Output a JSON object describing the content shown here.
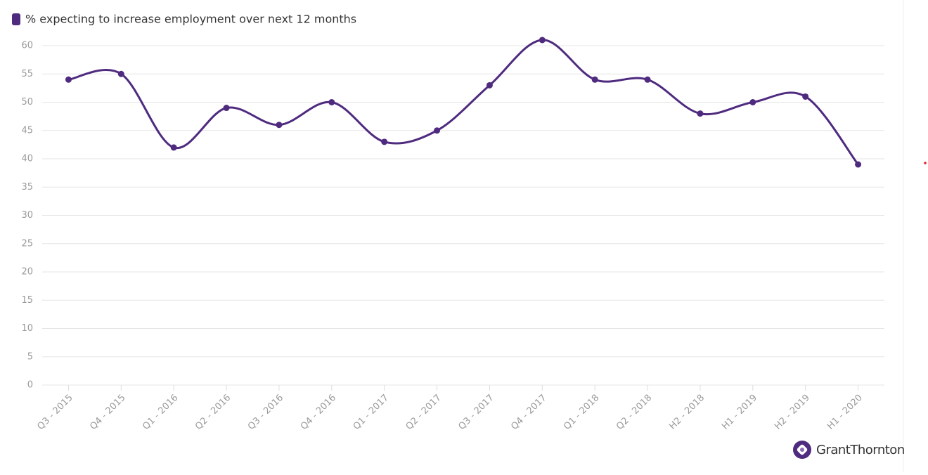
{
  "chart_data": {
    "type": "line",
    "categories": [
      "Q3 - 2015",
      "Q4 - 2015",
      "Q1 - 2016",
      "Q2 - 2016",
      "Q3 - 2016",
      "Q4 - 2016",
      "Q1 - 2017",
      "Q2 - 2017",
      "Q3 - 2017",
      "Q4 - 2017",
      "Q1 - 2018",
      "Q2 - 2018",
      "H2 - 2018",
      "H1 - 2019",
      "H2 - 2019",
      "H1 - 2020"
    ],
    "series": [
      {
        "name": "% expecting to increase employment over next 12 months",
        "color": "#4f2b7f",
        "values": [
          54,
          55,
          42,
          49,
          46,
          50,
          43,
          45,
          53,
          61,
          54,
          54,
          48,
          50,
          51,
          39
        ]
      }
    ],
    "ylim": [
      0,
      60
    ],
    "yticks": [
      0,
      5,
      10,
      15,
      20,
      25,
      30,
      35,
      40,
      45,
      50,
      55,
      60
    ],
    "grid": true,
    "legend": "top-left",
    "brand": "GrantThornton"
  }
}
